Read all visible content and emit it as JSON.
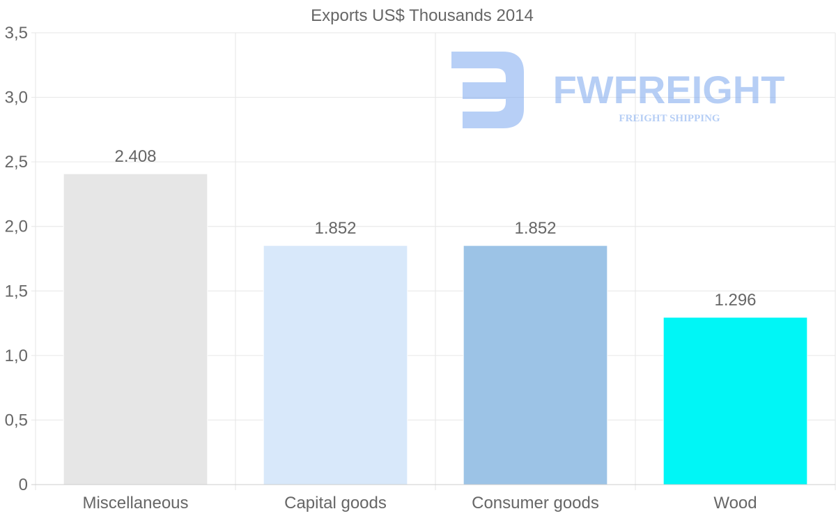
{
  "chart_data": {
    "type": "bar",
    "title": "Exports US$ Thousands 2014",
    "categories": [
      "Miscellaneous",
      "Capital goods",
      "Consumer goods",
      "Wood"
    ],
    "values": [
      2.408,
      1.852,
      1.852,
      1.296
    ],
    "data_labels": [
      "2.408",
      "1.852",
      "1.852",
      "1.296"
    ],
    "colors": [
      "#e6e6e6",
      "#d8e8fa",
      "#9cc3e6",
      "#00f6f6"
    ],
    "ylim": [
      0,
      3.5
    ],
    "yticks": [
      0,
      0.5,
      1.0,
      1.5,
      2.0,
      2.5,
      3.0,
      3.5
    ],
    "ytick_labels": [
      "0",
      "0,5",
      "1,0",
      "1,5",
      "2,0",
      "2,5",
      "3,0",
      "3,5"
    ],
    "xlabel": "",
    "ylabel": "",
    "grid": true,
    "legend": "none"
  },
  "watermark": {
    "brand": "FWFREIGHT",
    "tagline": "FREIGHT SHIPPING",
    "color": "#7ba7ee"
  }
}
